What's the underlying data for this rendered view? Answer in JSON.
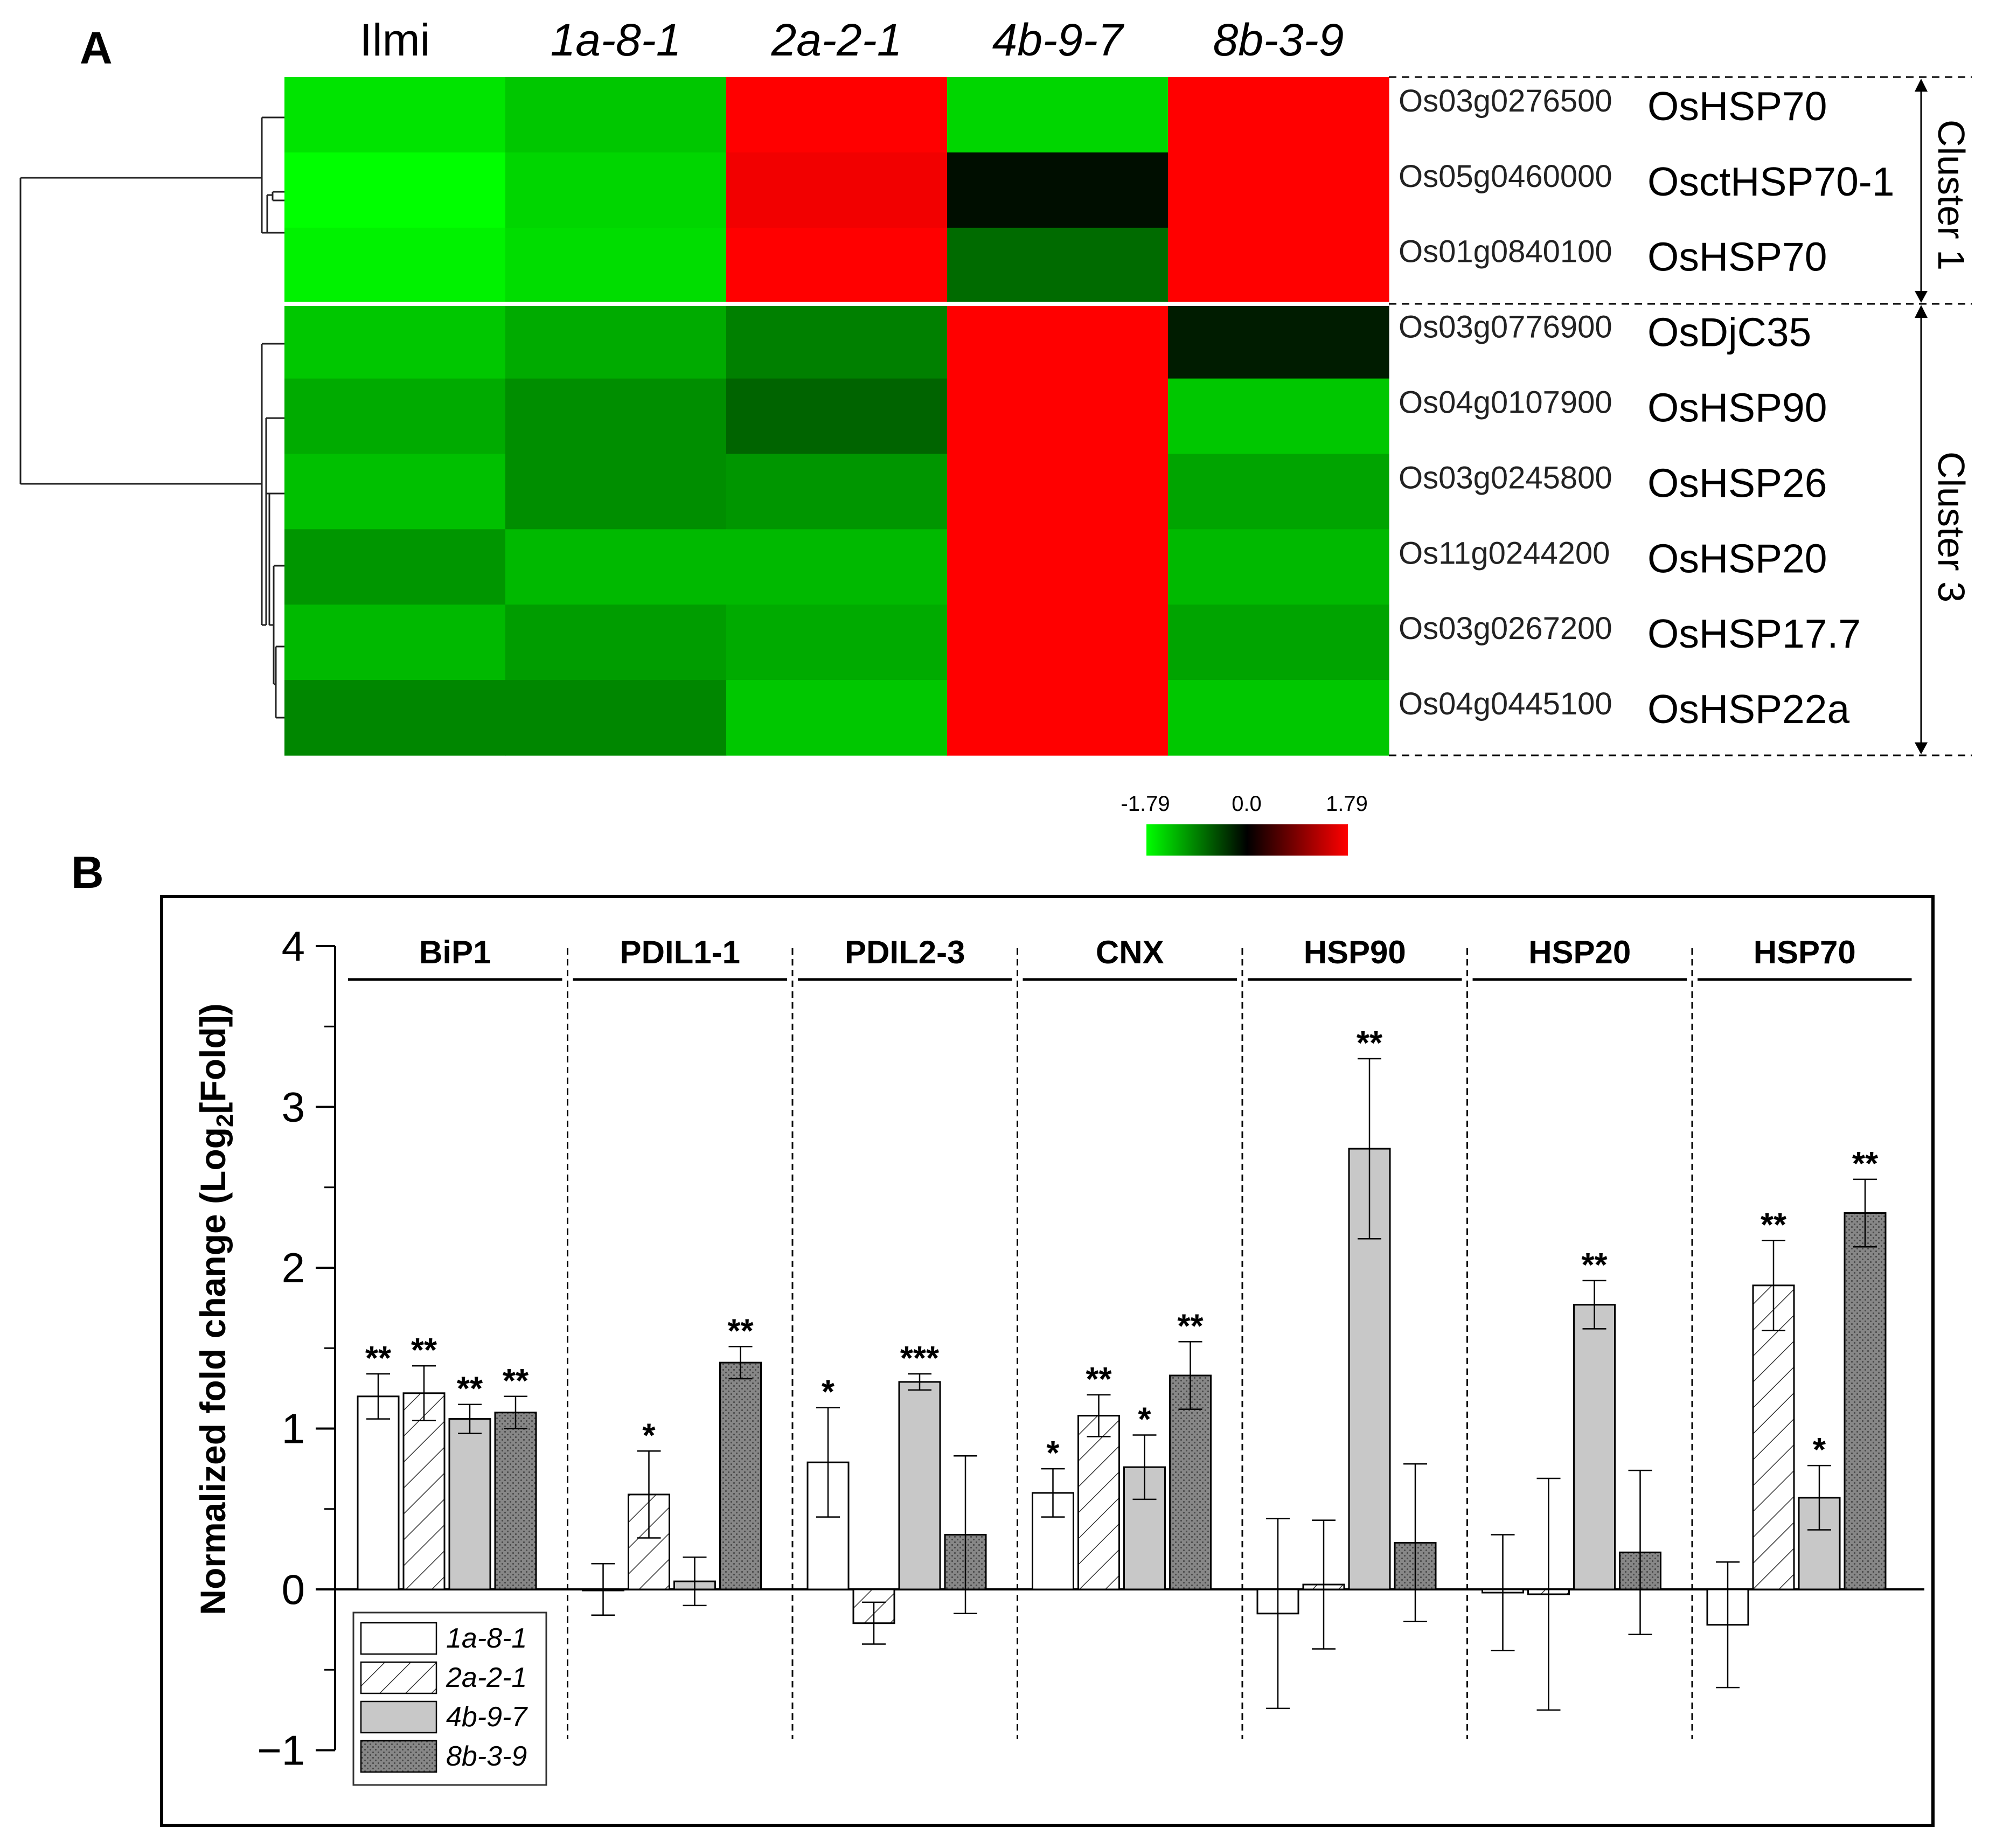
{
  "chart_data": [
    {
      "type": "heatmap",
      "panel_label": "A",
      "columns": [
        "Ilmi",
        "1a-8-1",
        "2a-2-1",
        "4b-9-7",
        "8b-3-9"
      ],
      "rows": [
        {
          "id": "Os03g0276500",
          "gene": "OsHSP70",
          "values": [
            -1.6,
            -1.4,
            1.79,
            -1.5,
            1.79
          ]
        },
        {
          "id": "Os05g0460000",
          "gene": "OsctHSP70-1",
          "values": [
            -1.79,
            -1.5,
            1.7,
            -0.1,
            1.79
          ]
        },
        {
          "id": "Os01g0840100",
          "gene": "OsHSP70",
          "values": [
            -1.7,
            -1.55,
            1.79,
            -0.75,
            1.79
          ]
        },
        {
          "id": "Os03g0776900",
          "gene": "OsDjC35",
          "values": [
            -1.4,
            -1.2,
            -0.9,
            1.79,
            -0.2
          ]
        },
        {
          "id": "Os04g0107900",
          "gene": "OsHSP90",
          "values": [
            -1.2,
            -1.0,
            -0.7,
            1.79,
            -1.4
          ]
        },
        {
          "id": "Os03g0245800",
          "gene": "OsHSP26",
          "values": [
            -1.35,
            -1.0,
            -1.05,
            1.79,
            -1.15
          ]
        },
        {
          "id": "Os11g0244200",
          "gene": "OsHSP20",
          "values": [
            -1.05,
            -1.3,
            -1.3,
            1.79,
            -1.3
          ]
        },
        {
          "id": "Os03g0267200",
          "gene": "OsHSP17.7",
          "values": [
            -1.3,
            -1.1,
            -1.2,
            1.79,
            -1.15
          ]
        },
        {
          "id": "Os04g0445100",
          "gene": "OsHSP22a",
          "values": [
            -0.95,
            -0.95,
            -1.4,
            1.79,
            -1.4
          ]
        }
      ],
      "clusters": [
        {
          "label": "Cluster 1",
          "rows": [
            0,
            1,
            2
          ]
        },
        {
          "label": "Cluster 3",
          "rows": [
            3,
            4,
            5,
            6,
            7,
            8
          ]
        }
      ],
      "color_scale": {
        "min": -1.79,
        "mid": 0.0,
        "max": 1.79,
        "labels": [
          "-1.79",
          "0.0",
          "1.79"
        ],
        "low_color": "#00ff00",
        "mid_color": "#000000",
        "high_color": "#ff0000"
      }
    },
    {
      "type": "bar",
      "panel_label": "B",
      "ylabel_main": "Normalized fold change (Log",
      "ylabel_sub": "2",
      "ylabel_end": "[Fold])",
      "ylim": [
        -1,
        4
      ],
      "yticks": [
        -1,
        0,
        1,
        2,
        3,
        4
      ],
      "ytick_labels": [
        "−1",
        "0",
        "1",
        "2",
        "3",
        "4"
      ],
      "series": [
        {
          "name": "1a-8-1",
          "style": "white"
        },
        {
          "name": "2a-2-1",
          "style": "hatched"
        },
        {
          "name": "4b-9-7",
          "style": "lightgray"
        },
        {
          "name": "8b-3-9",
          "style": "darkdotted"
        }
      ],
      "groups": [
        {
          "label": "BiP1",
          "values": [
            1.2,
            1.22,
            1.06,
            1.1
          ],
          "errors": [
            0.14,
            0.17,
            0.09,
            0.1
          ],
          "stars": [
            "**",
            "**",
            "**",
            "**"
          ]
        },
        {
          "label": "PDIL1-1",
          "values": [
            0.0,
            0.59,
            0.05,
            1.41
          ],
          "errors": [
            0.16,
            0.27,
            0.15,
            0.1
          ],
          "stars": [
            "",
            "*",
            "",
            "**"
          ]
        },
        {
          "label": "PDIL2-3",
          "values": [
            0.79,
            -0.21,
            1.29,
            0.34
          ],
          "errors": [
            0.34,
            0.13,
            0.05,
            0.49
          ],
          "stars": [
            "*",
            "",
            "***",
            ""
          ]
        },
        {
          "label": "CNX",
          "values": [
            0.6,
            1.08,
            0.76,
            1.33
          ],
          "errors": [
            0.15,
            0.13,
            0.2,
            0.21
          ],
          "stars": [
            "*",
            "**",
            "*",
            "**"
          ]
        },
        {
          "label": "HSP90",
          "values": [
            -0.15,
            0.03,
            2.74,
            0.29
          ],
          "errors": [
            0.59,
            0.4,
            0.56,
            0.49
          ],
          "stars": [
            "",
            "",
            "**",
            ""
          ]
        },
        {
          "label": "HSP20",
          "values": [
            -0.02,
            -0.03,
            1.77,
            0.23
          ],
          "errors": [
            0.36,
            0.72,
            0.15,
            0.51
          ],
          "stars": [
            "",
            "",
            "**",
            ""
          ]
        },
        {
          "label": "HSP70",
          "values": [
            -0.22,
            1.89,
            0.57,
            2.34
          ],
          "errors": [
            0.39,
            0.28,
            0.2,
            0.21
          ],
          "stars": [
            "",
            "**",
            "*",
            "**"
          ]
        }
      ]
    }
  ]
}
